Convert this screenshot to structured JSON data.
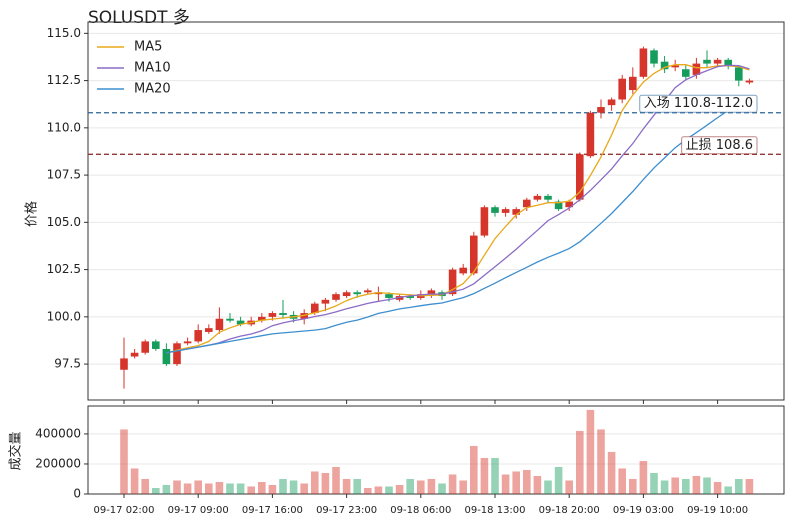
{
  "chart_data": [
    {
      "type": "candlestick",
      "title": "SOLUSDT  多",
      "ylabel": "价格",
      "open": [
        97.2,
        97.9,
        98.1,
        98.7,
        98.3,
        97.5,
        98.6,
        98.7,
        99.2,
        99.3,
        99.9,
        99.8,
        99.6,
        99.8,
        100.0,
        100.2,
        100.1,
        99.9,
        100.2,
        100.7,
        100.9,
        101.1,
        101.3,
        101.3,
        101.2,
        101.2,
        100.9,
        101.1,
        101.0,
        101.2,
        101.3,
        101.2,
        102.3,
        102.3,
        104.3,
        105.8,
        105.5,
        105.4,
        105.8,
        106.2,
        106.4,
        106.1,
        105.8,
        106.2,
        108.5,
        110.8,
        111.2,
        111.5,
        112.0,
        112.7,
        114.1,
        113.5,
        113.2,
        113.1,
        112.8,
        113.6,
        113.4,
        113.6,
        113.2,
        112.4
      ],
      "high": [
        98.9,
        98.3,
        98.8,
        98.8,
        98.6,
        98.7,
        98.9,
        99.6,
        99.6,
        100.5,
        100.2,
        100.0,
        100.0,
        100.2,
        100.3,
        100.9,
        100.3,
        100.4,
        100.8,
        101.0,
        101.3,
        101.4,
        101.4,
        101.5,
        101.6,
        101.3,
        101.2,
        101.2,
        101.4,
        101.5,
        101.4,
        102.6,
        102.8,
        104.5,
        105.9,
        105.9,
        105.8,
        105.8,
        106.3,
        106.5,
        106.5,
        106.2,
        106.2,
        108.7,
        110.9,
        111.5,
        111.6,
        112.8,
        113.2,
        114.3,
        114.2,
        113.8,
        113.6,
        113.3,
        113.7,
        114.1,
        113.7,
        113.7,
        113.3,
        112.6
      ],
      "low": [
        96.2,
        97.8,
        98.0,
        98.2,
        97.4,
        97.4,
        98.5,
        98.6,
        99.1,
        99.1,
        99.7,
        99.5,
        99.5,
        99.7,
        99.8,
        99.9,
        99.7,
        99.6,
        100.1,
        100.3,
        100.8,
        101.0,
        101.0,
        101.2,
        100.8,
        100.8,
        100.8,
        100.9,
        100.9,
        101.0,
        100.9,
        101.1,
        102.2,
        102.2,
        104.2,
        105.3,
        105.3,
        105.2,
        105.6,
        106.1,
        106.0,
        105.6,
        105.6,
        106.1,
        108.4,
        110.5,
        110.9,
        111.3,
        111.8,
        112.6,
        113.2,
        112.9,
        113.0,
        112.5,
        112.6,
        113.2,
        113.2,
        113.1,
        112.2,
        112.3
      ],
      "close": [
        97.8,
        98.1,
        98.7,
        98.3,
        97.5,
        98.6,
        98.7,
        99.3,
        99.4,
        99.9,
        99.8,
        99.6,
        99.8,
        100.0,
        100.2,
        100.1,
        99.9,
        100.2,
        100.7,
        100.9,
        101.2,
        101.3,
        101.2,
        101.4,
        101.3,
        101.0,
        101.1,
        101.0,
        101.2,
        101.4,
        101.1,
        102.5,
        102.6,
        104.3,
        105.8,
        105.5,
        105.7,
        105.7,
        106.2,
        106.4,
        106.2,
        105.7,
        106.1,
        108.6,
        110.8,
        111.1,
        111.5,
        112.6,
        112.7,
        114.2,
        113.4,
        113.1,
        113.3,
        112.7,
        113.4,
        113.4,
        113.6,
        113.3,
        112.5,
        112.5
      ],
      "up_color": "#d6352b",
      "down_color": "#169c5b",
      "series": [
        {
          "name": "MA5",
          "color": "#e8a91a",
          "values": [
            null,
            null,
            null,
            null,
            98.08,
            98.24,
            98.36,
            98.48,
            98.7,
            99.18,
            99.42,
            99.6,
            99.7,
            99.82,
            99.88,
            99.94,
            100,
            100.08,
            100.22,
            100.36,
            100.58,
            100.86,
            101.06,
            101.2,
            101.28,
            101.24,
            101.2,
            101.16,
            101.12,
            101.14,
            101.16,
            101.44,
            101.76,
            102.38,
            103.26,
            104.14,
            104.78,
            105.4,
            105.78,
            105.9,
            106.04,
            106.04,
            106.12,
            106.6,
            107.48,
            108.46,
            109.62,
            110.92,
            111.74,
            112.42,
            112.88,
            113.2,
            113.34,
            113.34,
            113.18,
            113.18,
            113.28,
            113.28,
            113.24,
            113.06
          ]
        },
        {
          "name": "MA10",
          "color": "#8b6cc6",
          "values": [
            null,
            null,
            null,
            null,
            98.1,
            98.2,
            98.3,
            98.4,
            98.5,
            98.63,
            98.83,
            98.98,
            99.09,
            99.26,
            99.53,
            99.68,
            99.8,
            99.89,
            100.02,
            100.12,
            100.26,
            100.43,
            100.57,
            100.71,
            100.82,
            100.91,
            101.03,
            101.11,
            101.16,
            101.21,
            101.2,
            101.32,
            101.46,
            101.75,
            102.2,
            102.65,
            103.11,
            103.58,
            104.08,
            104.58,
            105.09,
            105.41,
            105.76,
            106.19,
            106.69,
            107.25,
            107.83,
            108.52,
            109.17,
            109.95,
            110.67,
            111.41,
            112.13,
            112.54,
            112.8,
            113.03,
            113.24,
            113.31,
            113.29,
            113.12
          ]
        },
        {
          "name": "MA20",
          "color": "#3d8fcf",
          "values": [
            null,
            null,
            null,
            null,
            98.1,
            98.2,
            98.3,
            98.4,
            98.5,
            98.6,
            98.7,
            98.8,
            98.9,
            99,
            99.1,
            99.15,
            99.2,
            99.25,
            99.3,
            99.38,
            99.55,
            99.71,
            99.83,
            99.99,
            100.18,
            100.3,
            100.42,
            100.5,
            100.59,
            100.67,
            100.73,
            100.88,
            101.02,
            101.23,
            101.51,
            101.78,
            102.07,
            102.35,
            102.62,
            102.9,
            103.15,
            103.37,
            103.61,
            103.97,
            104.45,
            104.95,
            105.47,
            106.05,
            106.63,
            107.27,
            107.88,
            108.41,
            108.95,
            109.37,
            109.75,
            110.14,
            110.54,
            110.92,
            111.23,
            111.54
          ]
        }
      ],
      "hlines": [
        {
          "value": 110.8,
          "label": "入场 110.8-112.0",
          "color": "#2a6499"
        },
        {
          "value": 108.6,
          "label": "止损 108.6",
          "color": "#943636"
        }
      ],
      "ylim": [
        95.6,
        115.6
      ],
      "yticks": [
        97.5,
        {
          "value": 100,
          "label": "100.0"
        },
        102.5,
        {
          "value": 105,
          "label": "105.0"
        },
        107.5,
        {
          "value": 110,
          "label": "110.0"
        },
        112.5,
        {
          "value": 115,
          "label": "115.0"
        }
      ],
      "grid": true,
      "legend": "upper left"
    },
    {
      "type": "bar",
      "ylabel": "成交量",
      "categories": [
        "09-17 02:00",
        null,
        null,
        null,
        null,
        null,
        null,
        "09-17 09:00",
        null,
        null,
        null,
        null,
        null,
        null,
        "09-17 16:00",
        null,
        null,
        null,
        null,
        null,
        null,
        "09-17 23:00",
        null,
        null,
        null,
        null,
        null,
        null,
        "09-18 06:00",
        null,
        null,
        null,
        null,
        null,
        null,
        "09-18 13:00",
        null,
        null,
        null,
        null,
        null,
        null,
        "09-18 20:00",
        null,
        null,
        null,
        null,
        null,
        null,
        "09-19 03:00",
        null,
        null,
        null,
        null,
        null,
        null,
        "09-19 10:00",
        null,
        null,
        null
      ],
      "values": [
        430000,
        170000,
        100000,
        40000,
        60000,
        90000,
        70000,
        90000,
        70000,
        80000,
        70000,
        70000,
        50000,
        80000,
        60000,
        100000,
        90000,
        70000,
        150000,
        140000,
        180000,
        100000,
        100000,
        40000,
        50000,
        50000,
        60000,
        100000,
        90000,
        100000,
        70000,
        130000,
        90000,
        320000,
        240000,
        240000,
        130000,
        150000,
        160000,
        120000,
        90000,
        180000,
        90000,
        420000,
        560000,
        430000,
        280000,
        170000,
        100000,
        220000,
        140000,
        90000,
        110000,
        100000,
        120000,
        110000,
        80000,
        50000,
        100000,
        100000
      ],
      "ylim": [
        0,
        586000
      ],
      "yticks": [
        0,
        200000,
        400000
      ],
      "grid": true
    }
  ]
}
